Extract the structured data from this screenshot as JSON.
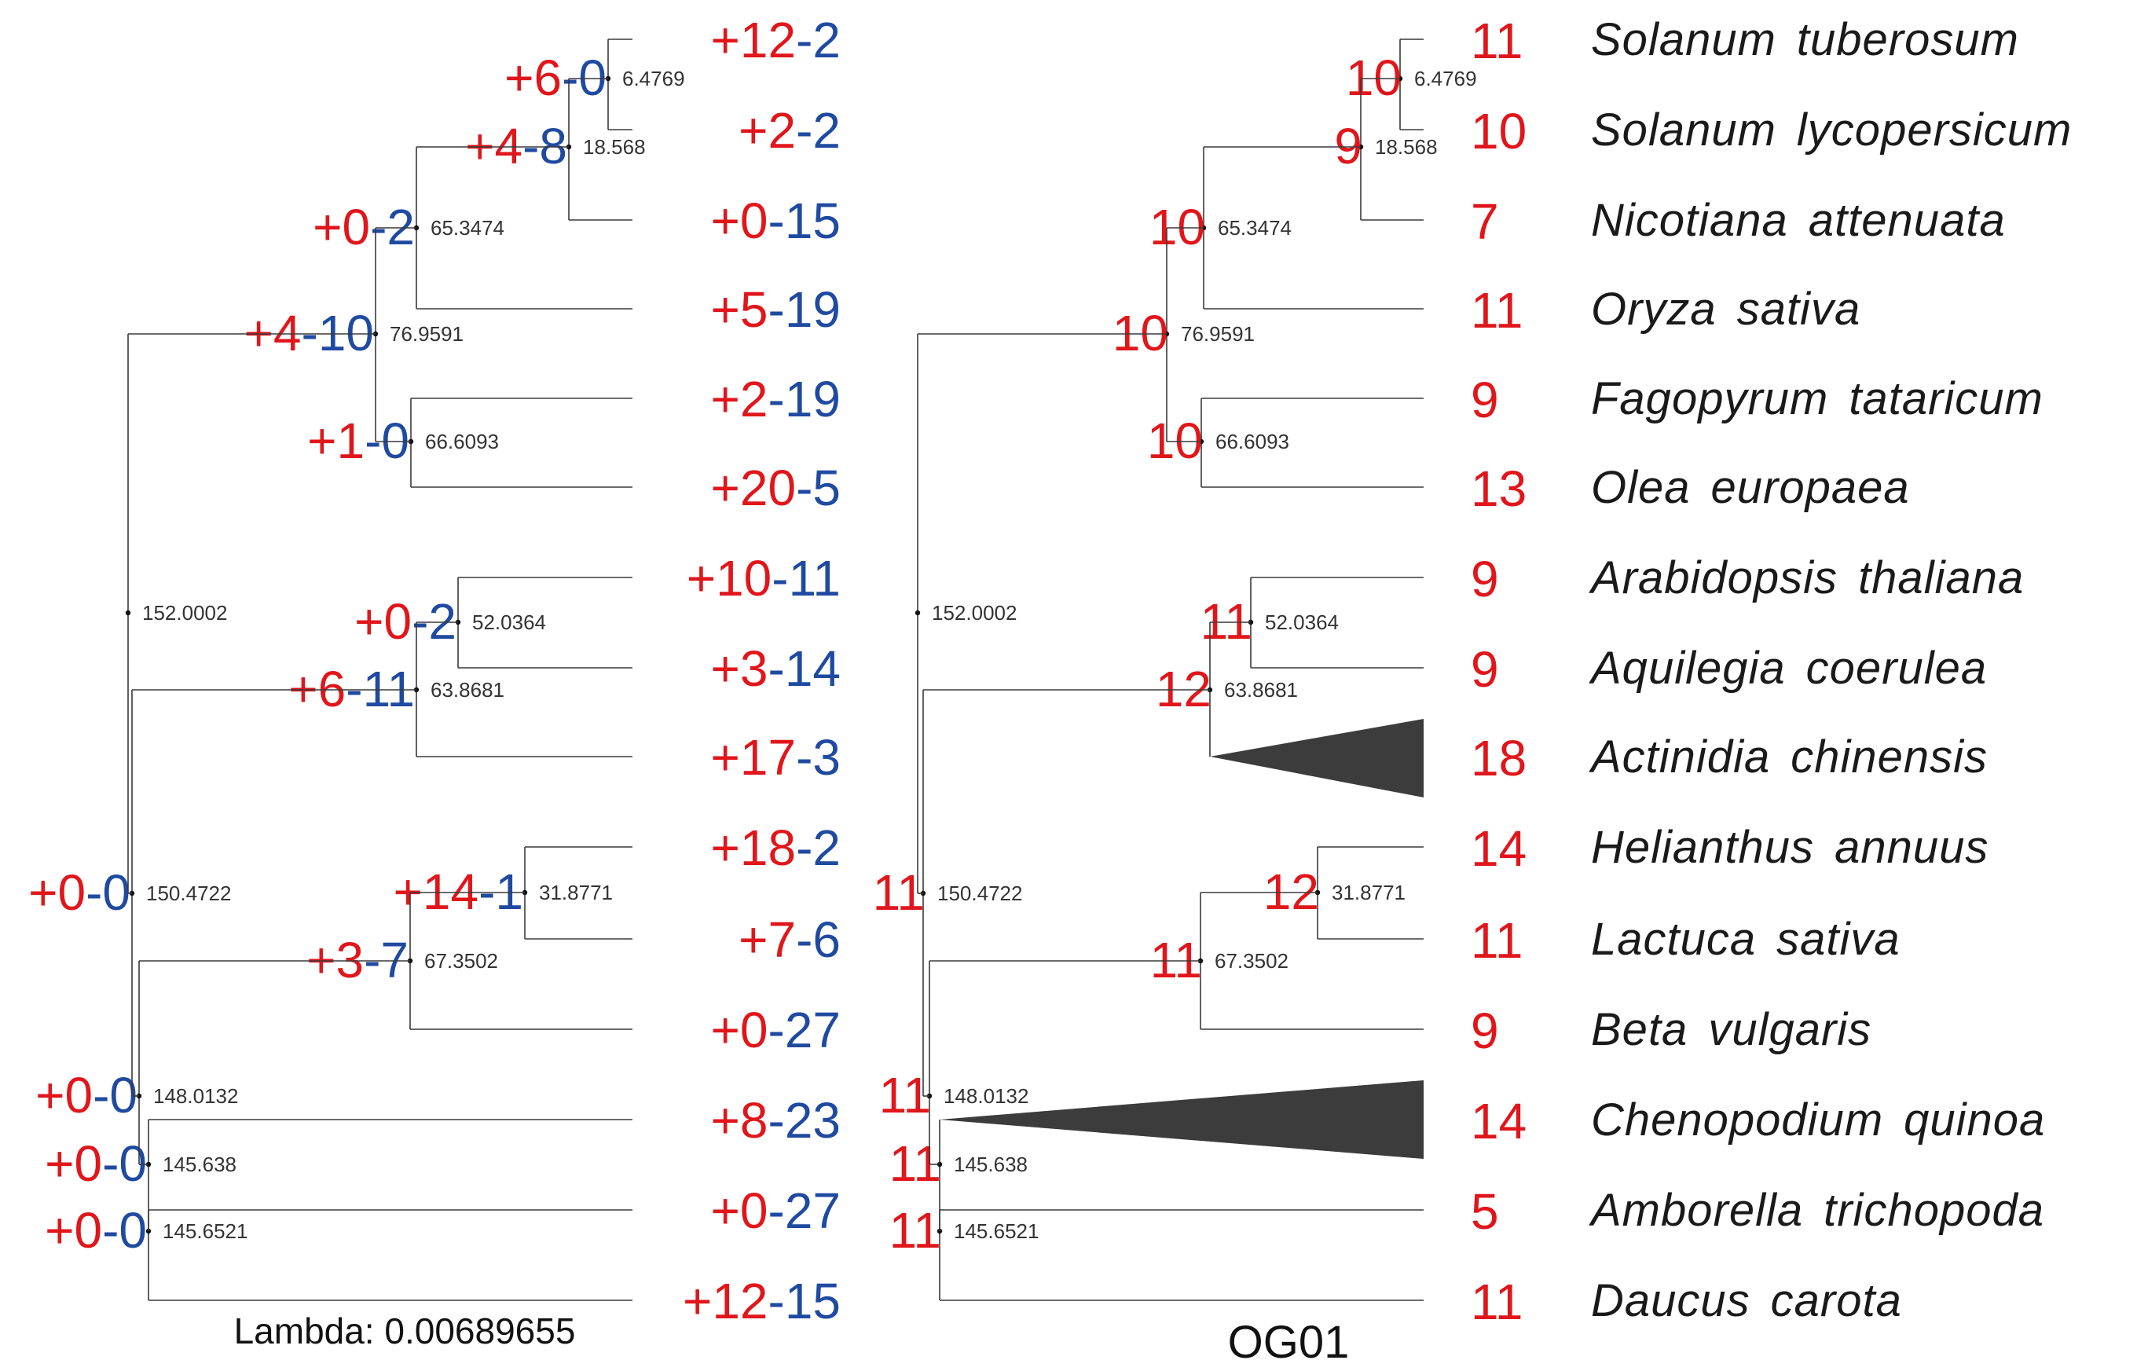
{
  "colors": {
    "gain": "#e0161b",
    "loss": "#1f4aa0",
    "count": "#e0161b",
    "line": "#3a3a3a"
  },
  "left_tree": {
    "caption": "Lambda: 0.00689655",
    "nodes": [
      {
        "id": "n1",
        "age": "6.4769",
        "change": {
          "gain": "+6",
          "loss": "-0"
        }
      },
      {
        "id": "n2",
        "age": "18.568",
        "change": {
          "gain": "+4",
          "loss": "-8"
        }
      },
      {
        "id": "n3",
        "age": "65.3474",
        "change": {
          "gain": "+0",
          "loss": "-2"
        }
      },
      {
        "id": "n4",
        "age": "76.9591",
        "change": {
          "gain": "+4",
          "loss": "-10"
        }
      },
      {
        "id": "n5",
        "age": "66.6093",
        "change": {
          "gain": "+1",
          "loss": "-0"
        }
      },
      {
        "id": "n6",
        "age": "152.0002",
        "change": null
      },
      {
        "id": "n7",
        "age": "52.0364",
        "change": {
          "gain": "+0",
          "loss": "-2"
        }
      },
      {
        "id": "n8",
        "age": "63.8681",
        "change": {
          "gain": "+6",
          "loss": "-11"
        }
      },
      {
        "id": "n9",
        "age": "31.8771",
        "change": {
          "gain": "+14",
          "loss": "-1"
        }
      },
      {
        "id": "n10",
        "age": "67.3502",
        "change": {
          "gain": "+3",
          "loss": "-7"
        }
      },
      {
        "id": "n11",
        "age": "150.4722",
        "change": {
          "gain": "+0",
          "loss": "-0"
        }
      },
      {
        "id": "n12",
        "age": "148.0132",
        "change": {
          "gain": "+0",
          "loss": "-0"
        }
      },
      {
        "id": "n13",
        "age": "145.638",
        "change": {
          "gain": "+0",
          "loss": "-0"
        }
      },
      {
        "id": "n14",
        "age": "145.6521",
        "change": {
          "gain": "+0",
          "loss": "-0"
        }
      }
    ],
    "tips": [
      {
        "gain": "+12",
        "loss": "-2"
      },
      {
        "gain": "+2",
        "loss": "-2"
      },
      {
        "gain": "+0",
        "loss": "-15"
      },
      {
        "gain": "+5",
        "loss": "-19"
      },
      {
        "gain": "+2",
        "loss": "-19"
      },
      {
        "gain": "+20",
        "loss": "-5"
      },
      {
        "gain": "+10",
        "loss": "-11"
      },
      {
        "gain": "+3",
        "loss": "-14"
      },
      {
        "gain": "+17",
        "loss": "-3"
      },
      {
        "gain": "+18",
        "loss": "-2"
      },
      {
        "gain": "+7",
        "loss": "-6"
      },
      {
        "gain": "+0",
        "loss": "-27"
      },
      {
        "gain": "+8",
        "loss": "-23"
      },
      {
        "gain": "+0",
        "loss": "-27"
      },
      {
        "gain": "+12",
        "loss": "-15"
      }
    ]
  },
  "right_tree": {
    "caption": "OG01",
    "nodes": [
      {
        "id": "n1",
        "age": "6.4769",
        "count": "10"
      },
      {
        "id": "n2",
        "age": "18.568",
        "count": "9"
      },
      {
        "id": "n3",
        "age": "65.3474",
        "count": "10"
      },
      {
        "id": "n4",
        "age": "76.9591",
        "count": "10"
      },
      {
        "id": "n5",
        "age": "66.6093",
        "count": "10"
      },
      {
        "id": "n6",
        "age": "152.0002",
        "count": null
      },
      {
        "id": "n7",
        "age": "52.0364",
        "count": "11"
      },
      {
        "id": "n8",
        "age": "63.8681",
        "count": "12"
      },
      {
        "id": "n9",
        "age": "31.8771",
        "count": "12"
      },
      {
        "id": "n10",
        "age": "67.3502",
        "count": "11"
      },
      {
        "id": "n11",
        "age": "150.4722",
        "count": "11"
      },
      {
        "id": "n12",
        "age": "148.0132",
        "count": "11"
      },
      {
        "id": "n13",
        "age": "145.638",
        "count": "11"
      },
      {
        "id": "n14",
        "age": "145.6521",
        "count": "11"
      }
    ],
    "tip_counts": [
      "11",
      "10",
      "7",
      "11",
      "9",
      "13",
      "9",
      "9",
      "18",
      "14",
      "11",
      "9",
      "14",
      "5",
      "11"
    ]
  },
  "species": [
    {
      "genus": "Solanum",
      "epithet": "tuberosum"
    },
    {
      "genus": "Solanum",
      "epithet": "lycopersicum"
    },
    {
      "genus": "Nicotiana",
      "epithet": "attenuata"
    },
    {
      "genus": "Oryza",
      "epithet": "sativa"
    },
    {
      "genus": "Fagopyrum",
      "epithet": "tataricum"
    },
    {
      "genus": "Olea",
      "epithet": "europaea"
    },
    {
      "genus": "Arabidopsis",
      "epithet": "thaliana"
    },
    {
      "genus": "Aquilegia",
      "epithet": "coerulea"
    },
    {
      "genus": "Actinidia",
      "epithet": "chinensis"
    },
    {
      "genus": "Helianthus",
      "epithet": "annuus"
    },
    {
      "genus": "Lactuca",
      "epithet": "sativa"
    },
    {
      "genus": "Beta",
      "epithet": "vulgaris"
    },
    {
      "genus": "Chenopodium",
      "epithet": "quinoa"
    },
    {
      "genus": "Amborella",
      "epithet": "trichopoda"
    },
    {
      "genus": "Daucus",
      "epithet": "carota"
    }
  ]
}
